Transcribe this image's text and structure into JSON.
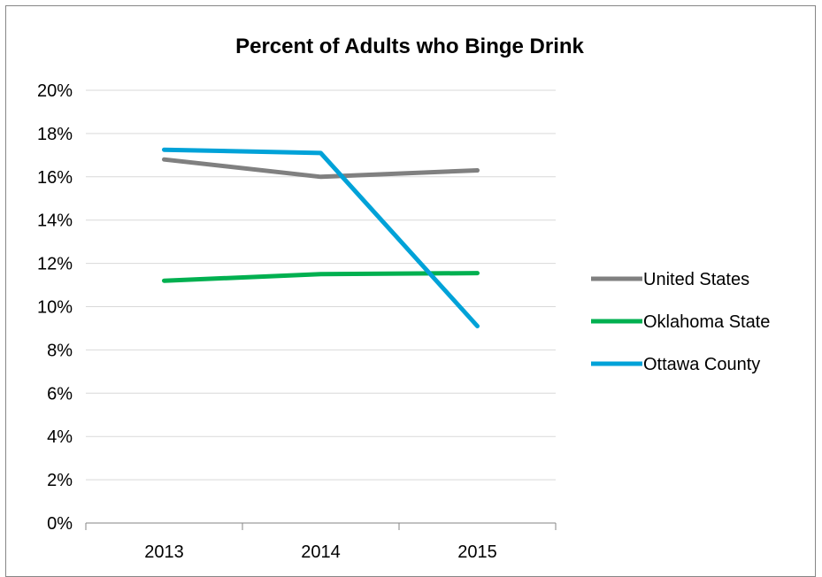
{
  "chart_data": {
    "type": "line",
    "title": "Percent of Adults who Binge Drink",
    "xlabel": "",
    "ylabel": "",
    "categories": [
      "2013",
      "2014",
      "2015"
    ],
    "ylim": [
      0,
      20
    ],
    "y_ticks": [
      "0%",
      "2%",
      "4%",
      "6%",
      "8%",
      "10%",
      "12%",
      "14%",
      "16%",
      "18%",
      "20%"
    ],
    "grid": true,
    "legend_position": "right",
    "series": [
      {
        "name": "United States",
        "values": [
          16.8,
          16.0,
          16.3
        ],
        "color": "#808080"
      },
      {
        "name": "Oklahoma State",
        "values": [
          11.2,
          11.5,
          11.55
        ],
        "color": "#00b050"
      },
      {
        "name": "Ottawa County",
        "values": [
          17.25,
          17.1,
          9.1
        ],
        "color": "#00a2d8"
      }
    ]
  }
}
